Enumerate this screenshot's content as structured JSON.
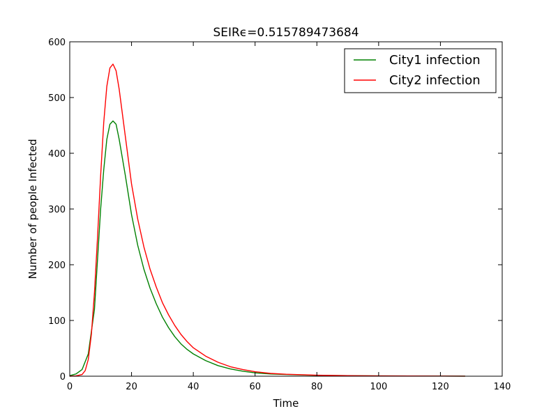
{
  "chart_data": {
    "type": "line",
    "title": "SEIRϵ=0.515789473684",
    "xlabel": "Time",
    "ylabel": "Number of people Infected",
    "xlim": [
      0,
      140
    ],
    "ylim": [
      0,
      600
    ],
    "xticks": [
      0,
      20,
      40,
      60,
      80,
      100,
      120,
      140
    ],
    "yticks": [
      0,
      100,
      200,
      300,
      400,
      500,
      600
    ],
    "grid": false,
    "legend_position": "top-right",
    "series": [
      {
        "name": "City1 infection",
        "color": "#008000",
        "x": [
          0,
          2,
          4,
          6,
          8,
          10,
          11,
          12,
          13,
          14,
          15,
          16,
          18,
          20,
          22,
          24,
          26,
          28,
          30,
          32,
          34,
          36,
          38,
          40,
          44,
          48,
          52,
          56,
          60,
          65,
          70,
          80,
          90,
          100,
          110,
          120,
          128
        ],
        "y": [
          1,
          4,
          12,
          40,
          120,
          300,
          370,
          425,
          452,
          458,
          452,
          425,
          360,
          290,
          235,
          192,
          158,
          130,
          106,
          87,
          71,
          58,
          48,
          40,
          28,
          19,
          13,
          9,
          6,
          4,
          3,
          1.5,
          1,
          0.5,
          0.3,
          0.2,
          0.1
        ]
      },
      {
        "name": "City2 infection",
        "color": "#ff0000",
        "x": [
          0,
          2,
          4,
          5,
          6,
          7,
          8,
          9,
          10,
          11,
          12,
          13,
          14,
          15,
          16,
          18,
          20,
          22,
          24,
          26,
          28,
          30,
          32,
          34,
          36,
          38,
          40,
          44,
          48,
          52,
          56,
          60,
          65,
          70,
          80,
          90,
          100,
          110,
          120,
          128
        ],
        "y": [
          0,
          0.5,
          3,
          10,
          30,
          75,
          150,
          250,
          360,
          455,
          520,
          553,
          560,
          548,
          515,
          430,
          345,
          282,
          232,
          192,
          160,
          132,
          110,
          91,
          75,
          62,
          51,
          36,
          25,
          17,
          12,
          8,
          5,
          3.5,
          1.8,
          1,
          0.6,
          0.3,
          0.2,
          0.1
        ]
      }
    ]
  }
}
